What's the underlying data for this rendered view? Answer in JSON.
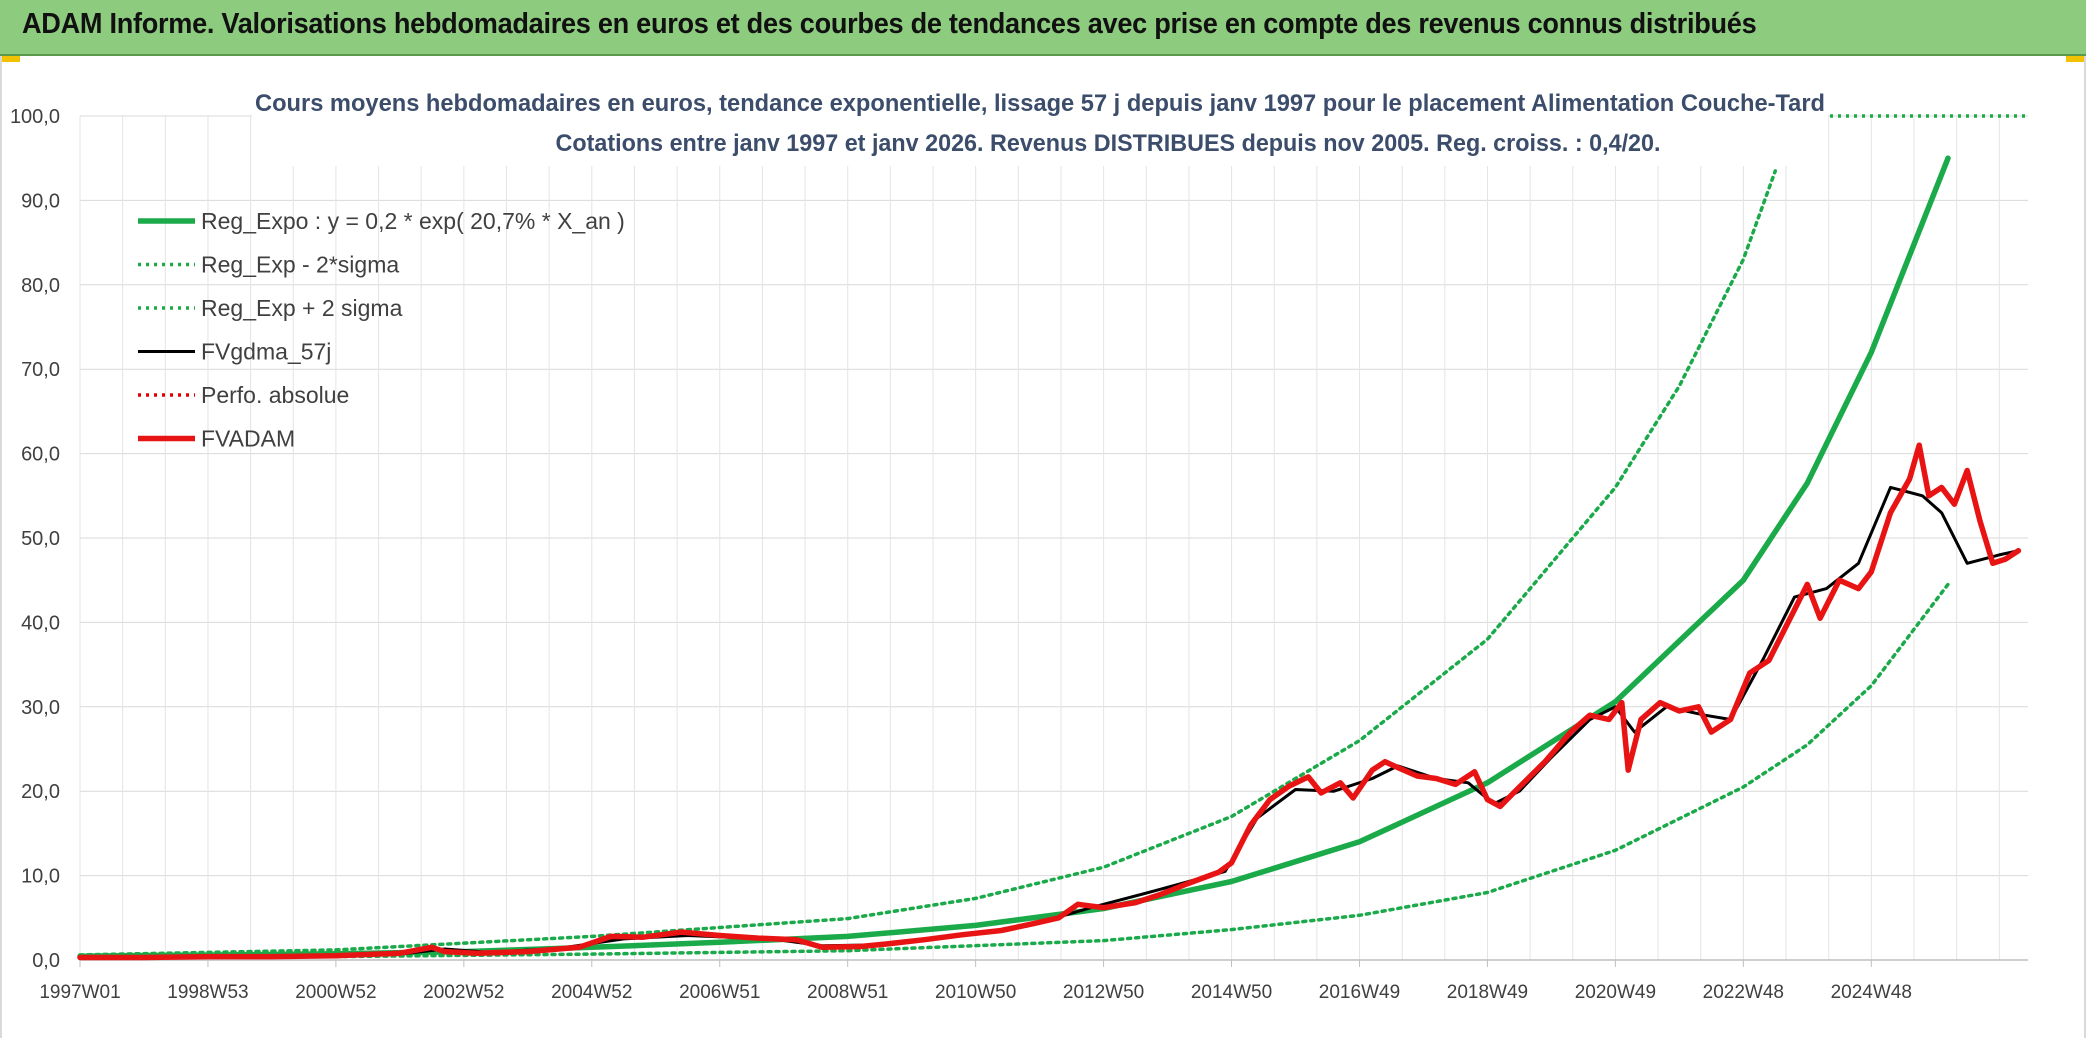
{
  "banner": {
    "title": "ADAM Informe. Valorisations hebdomadaires en euros et des courbes de tendances avec prise en compte des revenus connus distribués"
  },
  "chart_data": {
    "type": "line",
    "title": "Cours moyens hebdomadaires en euros, tendance exponentielle, lissage 57 j depuis janv 1997 pour le placement Alimentation Couche-Tard",
    "subtitle": "Cotations entre janv 1997 et janv 2026. Revenus DISTRIBUES depuis nov 2005. Reg. croiss. : 0,4/20.",
    "xlabel": "",
    "ylabel": "",
    "ylim": [
      0,
      100
    ],
    "xlim": [
      1997.0,
      2026.2
    ],
    "grid": true,
    "legend_position": "top-left",
    "y_ticks": [
      "0,0",
      "10,0",
      "20,0",
      "30,0",
      "40,0",
      "50,0",
      "60,0",
      "70,0",
      "80,0",
      "90,0",
      "100,0"
    ],
    "x_ticks": [
      {
        "label": "1997W01",
        "x": 1997.0
      },
      {
        "label": "1998W53",
        "x": 1999.0
      },
      {
        "label": "2000W52",
        "x": 2001.0
      },
      {
        "label": "2002W52",
        "x": 2003.0
      },
      {
        "label": "2004W52",
        "x": 2005.0
      },
      {
        "label": "2006W51",
        "x": 2007.0
      },
      {
        "label": "2008W51",
        "x": 2009.0
      },
      {
        "label": "2010W50",
        "x": 2011.0
      },
      {
        "label": "2012W50",
        "x": 2013.0
      },
      {
        "label": "2014W50",
        "x": 2015.0
      },
      {
        "label": "2016W49",
        "x": 2017.0
      },
      {
        "label": "2018W49",
        "x": 2019.0
      },
      {
        "label": "2020W49",
        "x": 2021.0
      },
      {
        "label": "2022W48",
        "x": 2023.0
      },
      {
        "label": "2024W48",
        "x": 2025.0
      }
    ],
    "series": [
      {
        "name": "Reg_Expo : y = 0,2 * exp( 20,7% *  X_an )",
        "style": "solid-thick",
        "color": "#1aaa4a",
        "points": [
          [
            1997.0,
            0.45
          ],
          [
            1999.0,
            0.58
          ],
          [
            2001.0,
            0.75
          ],
          [
            2003.0,
            1.0
          ],
          [
            2005.0,
            1.5
          ],
          [
            2007.0,
            2.1
          ],
          [
            2009.0,
            2.8
          ],
          [
            2011.0,
            4.1
          ],
          [
            2013.0,
            6.1
          ],
          [
            2015.0,
            9.3
          ],
          [
            2017.0,
            14.0
          ],
          [
            2019.0,
            21.0
          ],
          [
            2021.0,
            30.6
          ],
          [
            2023.0,
            45.0
          ],
          [
            2024.0,
            56.5
          ],
          [
            2025.0,
            72.0
          ],
          [
            2026.2,
            95.0
          ]
        ]
      },
      {
        "name": "Reg_Exp - 2*sigma",
        "style": "dotted",
        "color": "#1aaa4a",
        "points": [
          [
            1997.0,
            0.3
          ],
          [
            2001.0,
            0.4
          ],
          [
            2005.0,
            0.7
          ],
          [
            2009.0,
            1.1
          ],
          [
            2013.0,
            2.3
          ],
          [
            2015.0,
            3.6
          ],
          [
            2017.0,
            5.3
          ],
          [
            2019.0,
            8.0
          ],
          [
            2021.0,
            13.0
          ],
          [
            2023.0,
            20.5
          ],
          [
            2024.0,
            25.5
          ],
          [
            2025.0,
            32.5
          ],
          [
            2026.2,
            44.5
          ]
        ]
      },
      {
        "name": "Reg_Exp + 2 sigma",
        "style": "dotted",
        "color": "#1aaa4a",
        "points": [
          [
            1997.0,
            0.6
          ],
          [
            2001.0,
            1.2
          ],
          [
            2005.0,
            2.8
          ],
          [
            2009.0,
            4.9
          ],
          [
            2011.0,
            7.3
          ],
          [
            2013.0,
            11.0
          ],
          [
            2015.0,
            17.0
          ],
          [
            2017.0,
            26.0
          ],
          [
            2019.0,
            38.0
          ],
          [
            2021.0,
            56.0
          ],
          [
            2022.0,
            68.0
          ],
          [
            2023.0,
            83.0
          ],
          [
            2023.5,
            93.5
          ]
        ]
      },
      {
        "name": "FVgdma_57j",
        "style": "solid",
        "color": "#000000",
        "points": [
          [
            1997.0,
            0.3
          ],
          [
            1999.0,
            0.4
          ],
          [
            2001.0,
            0.5
          ],
          [
            2002.0,
            0.7
          ],
          [
            2002.7,
            1.3
          ],
          [
            2003.4,
            0.9
          ],
          [
            2004.5,
            1.4
          ],
          [
            2005.5,
            2.5
          ],
          [
            2006.5,
            2.9
          ],
          [
            2007.8,
            2.5
          ],
          [
            2008.6,
            1.7
          ],
          [
            2009.6,
            1.8
          ],
          [
            2010.6,
            2.8
          ],
          [
            2011.8,
            4.0
          ],
          [
            2012.8,
            6.2
          ],
          [
            2013.9,
            8.4
          ],
          [
            2014.9,
            10.5
          ],
          [
            2015.4,
            16.8
          ],
          [
            2016.0,
            20.2
          ],
          [
            2016.6,
            20.0
          ],
          [
            2017.2,
            21.5
          ],
          [
            2017.6,
            23.0
          ],
          [
            2018.2,
            21.5
          ],
          [
            2018.7,
            21.0
          ],
          [
            2019.1,
            18.5
          ],
          [
            2019.5,
            20.0
          ],
          [
            2020.0,
            24.0
          ],
          [
            2020.6,
            28.5
          ],
          [
            2021.0,
            30.0
          ],
          [
            2021.3,
            27.0
          ],
          [
            2021.8,
            30.0
          ],
          [
            2022.4,
            29.0
          ],
          [
            2022.8,
            28.5
          ],
          [
            2023.3,
            35.5
          ],
          [
            2023.8,
            43.0
          ],
          [
            2024.3,
            44.0
          ],
          [
            2024.8,
            47.0
          ],
          [
            2025.3,
            56.0
          ],
          [
            2025.8,
            55.0
          ],
          [
            2026.1,
            53.0
          ],
          [
            2026.5,
            47.0
          ],
          [
            2027.0,
            48.0
          ],
          [
            2027.3,
            48.5
          ]
        ]
      },
      {
        "name": "Perfo. absolue",
        "style": "dotted",
        "color": "#e00000",
        "points": []
      },
      {
        "name": "FVADAM",
        "style": "solid-thick",
        "color": "#e81414",
        "points": [
          [
            1997.0,
            0.3
          ],
          [
            1998.0,
            0.3
          ],
          [
            1999.0,
            0.4
          ],
          [
            2000.0,
            0.4
          ],
          [
            2001.0,
            0.5
          ],
          [
            2002.0,
            0.8
          ],
          [
            2002.5,
            1.5
          ],
          [
            2002.7,
            1.0
          ],
          [
            2003.2,
            0.8
          ],
          [
            2004.0,
            1.0
          ],
          [
            2004.8,
            1.5
          ],
          [
            2005.3,
            2.8
          ],
          [
            2005.8,
            2.7
          ],
          [
            2006.4,
            3.3
          ],
          [
            2007.0,
            2.9
          ],
          [
            2007.6,
            2.6
          ],
          [
            2008.2,
            2.4
          ],
          [
            2008.6,
            1.5
          ],
          [
            2009.2,
            1.6
          ],
          [
            2009.6,
            1.9
          ],
          [
            2010.2,
            2.4
          ],
          [
            2010.8,
            3.0
          ],
          [
            2011.4,
            3.5
          ],
          [
            2011.9,
            4.3
          ],
          [
            2012.3,
            5.0
          ],
          [
            2012.6,
            6.6
          ],
          [
            2013.0,
            6.2
          ],
          [
            2013.5,
            6.8
          ],
          [
            2013.9,
            7.8
          ],
          [
            2014.3,
            9.0
          ],
          [
            2014.8,
            10.4
          ],
          [
            2015.0,
            11.5
          ],
          [
            2015.3,
            16.0
          ],
          [
            2015.6,
            19.0
          ],
          [
            2015.9,
            20.6
          ],
          [
            2016.2,
            21.7
          ],
          [
            2016.4,
            19.8
          ],
          [
            2016.7,
            21.0
          ],
          [
            2016.9,
            19.2
          ],
          [
            2017.2,
            22.5
          ],
          [
            2017.4,
            23.5
          ],
          [
            2017.6,
            22.8
          ],
          [
            2017.9,
            21.8
          ],
          [
            2018.2,
            21.5
          ],
          [
            2018.5,
            20.8
          ],
          [
            2018.8,
            22.3
          ],
          [
            2019.0,
            19.0
          ],
          [
            2019.2,
            18.2
          ],
          [
            2019.5,
            20.5
          ],
          [
            2019.9,
            23.5
          ],
          [
            2020.3,
            27.0
          ],
          [
            2020.6,
            29.0
          ],
          [
            2020.9,
            28.5
          ],
          [
            2021.1,
            30.5
          ],
          [
            2021.2,
            22.5
          ],
          [
            2021.4,
            28.5
          ],
          [
            2021.7,
            30.5
          ],
          [
            2022.0,
            29.5
          ],
          [
            2022.3,
            30.0
          ],
          [
            2022.5,
            27.0
          ],
          [
            2022.8,
            28.5
          ],
          [
            2023.1,
            34.0
          ],
          [
            2023.4,
            35.5
          ],
          [
            2023.7,
            40.0
          ],
          [
            2024.0,
            44.5
          ],
          [
            2024.2,
            40.5
          ],
          [
            2024.5,
            45.0
          ],
          [
            2024.8,
            44.0
          ],
          [
            2025.0,
            46.0
          ],
          [
            2025.3,
            53.0
          ],
          [
            2025.6,
            57.0
          ],
          [
            2025.75,
            61.0
          ],
          [
            2025.9,
            55.0
          ],
          [
            2026.1,
            56.0
          ],
          [
            2026.3,
            54.0
          ],
          [
            2026.5,
            58.0
          ],
          [
            2026.7,
            52.0
          ],
          [
            2026.9,
            47.0
          ],
          [
            2027.1,
            47.5
          ],
          [
            2027.3,
            48.5
          ]
        ]
      }
    ]
  }
}
